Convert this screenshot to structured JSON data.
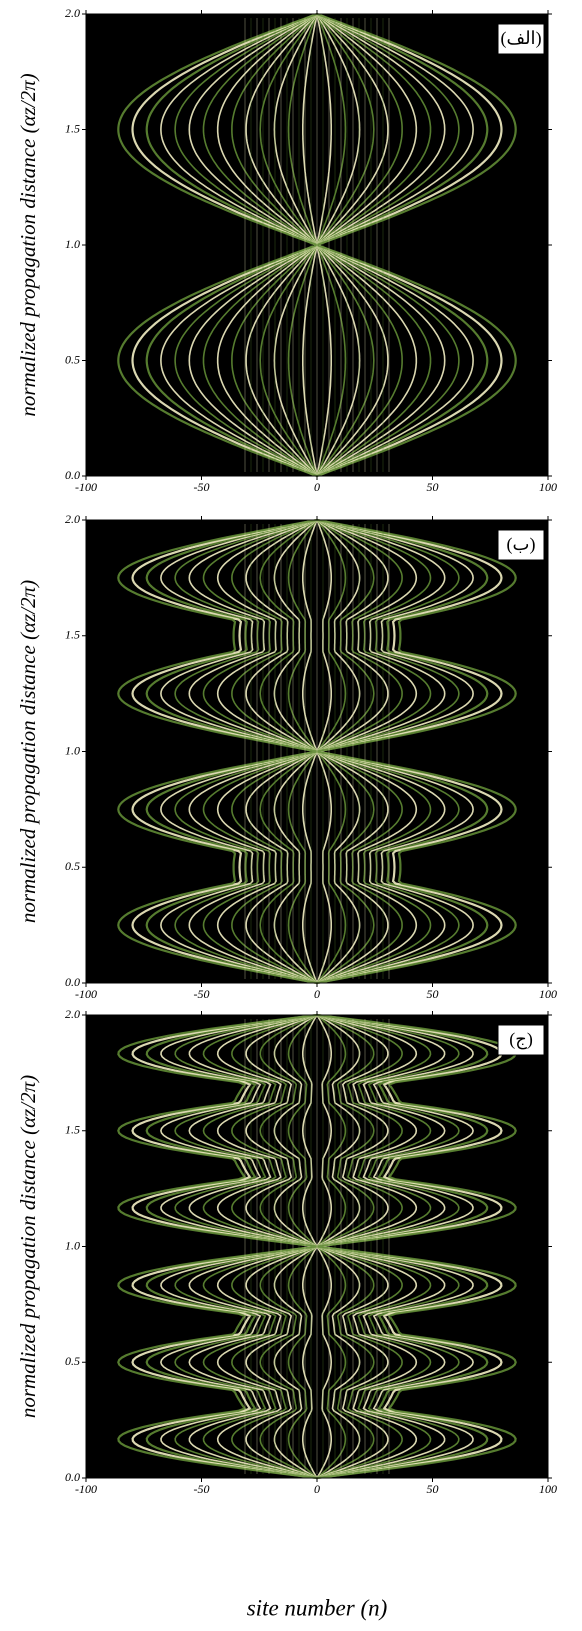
{
  "chart_data": [
    {
      "type": "heatmap",
      "panel_label": "(الف)",
      "ylabel": "normalized propagation distance (αz/2π)",
      "xlim": [
        -100,
        100
      ],
      "xticks": [
        -100,
        -50,
        0,
        50,
        100
      ],
      "ylim": [
        0,
        2
      ],
      "yticks": [
        {
          "value": 0,
          "label": "0.0"
        },
        {
          "value": 0.5,
          "label": "0.5"
        },
        {
          "value": 1,
          "label": "1.0"
        },
        {
          "value": 1.5,
          "label": "1.5"
        },
        {
          "value": 2,
          "label": "2.0"
        }
      ]
    },
    {
      "type": "heatmap",
      "panel_label": "(ب)",
      "ylabel": "normalized propagation distance (αz/2π)",
      "xlim": [
        -100,
        100
      ],
      "xticks": [
        -100,
        -50,
        0,
        50,
        100
      ],
      "ylim": [
        0,
        2
      ],
      "yticks": [
        {
          "value": 0,
          "label": "0.0"
        },
        {
          "value": 0.5,
          "label": "0.5"
        },
        {
          "value": 1,
          "label": "1.0"
        },
        {
          "value": 1.5,
          "label": "1.5"
        },
        {
          "value": 2,
          "label": "2.0"
        }
      ]
    },
    {
      "type": "heatmap",
      "panel_label": "(ج)",
      "ylabel": "normalized propagation distance (αz/2π)",
      "xlabel": "site number (n)",
      "xlim": [
        -100,
        100
      ],
      "xticks": [
        -100,
        -50,
        0,
        50,
        100
      ],
      "ylim": [
        0,
        2
      ],
      "yticks": [
        {
          "value": 0,
          "label": "0.0"
        },
        {
          "value": 0.5,
          "label": "0.5"
        },
        {
          "value": 1,
          "label": "1.0"
        },
        {
          "value": 1.5,
          "label": "1.5"
        },
        {
          "value": 2,
          "label": "2.0"
        }
      ]
    }
  ]
}
